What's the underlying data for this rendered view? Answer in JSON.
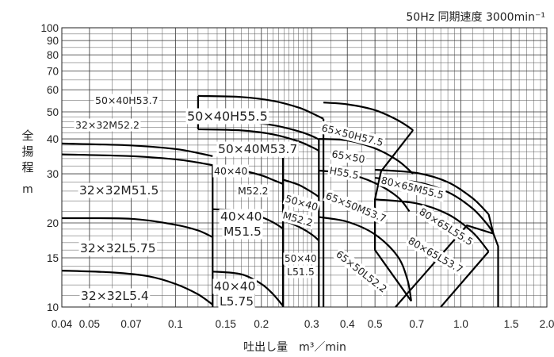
{
  "header": {
    "freq_speed": "50Hz 同期速度 3000min⁻¹"
  },
  "chart_data": {
    "type": "line",
    "x_scale": "log",
    "y_scale": "log",
    "xlabel": "吐出し量　m³／min",
    "ylabel": [
      "全",
      "揚",
      "程",
      "m"
    ],
    "xlim": [
      0.04,
      2.0
    ],
    "ylim": [
      10,
      100
    ],
    "x_ticks": [
      {
        "v": 0.04,
        "t": "0.04"
      },
      {
        "v": 0.05,
        "t": "0.05"
      },
      {
        "v": 0.07,
        "t": "0.07"
      },
      {
        "v": 0.1,
        "t": "0.1"
      },
      {
        "v": 0.15,
        "t": "0.15"
      },
      {
        "v": 0.2,
        "t": "0.2"
      },
      {
        "v": 0.3,
        "t": "0.3"
      },
      {
        "v": 0.4,
        "t": "0.4"
      },
      {
        "v": 0.5,
        "t": "0.5"
      },
      {
        "v": 0.7,
        "t": "0.7"
      },
      {
        "v": 1.0,
        "t": "1.0"
      },
      {
        "v": 1.5,
        "t": "1.5"
      },
      {
        "v": 2.0,
        "t": "2.0"
      }
    ],
    "y_ticks": [
      {
        "v": 10,
        "t": "10"
      },
      {
        "v": 15,
        "t": "15"
      },
      {
        "v": 20,
        "t": "20"
      },
      {
        "v": 30,
        "t": "30"
      },
      {
        "v": 40,
        "t": "40"
      },
      {
        "v": 50,
        "t": "50"
      },
      {
        "v": 60,
        "t": "60"
      },
      {
        "v": 70,
        "t": "70"
      },
      {
        "v": 80,
        "t": "80"
      },
      {
        "v": 90,
        "t": "90"
      },
      {
        "v": 100,
        "t": "100"
      }
    ],
    "grid": true,
    "series": [
      {
        "label": "32×32L5.4",
        "points": [
          [
            0.04,
            13.5
          ],
          [
            0.06,
            13.3
          ],
          [
            0.08,
            12.9
          ],
          [
            0.1,
            12.1
          ],
          [
            0.12,
            11.1
          ],
          [
            0.135,
            10.2
          ]
        ]
      },
      {
        "label": "32×32L5.75",
        "points": [
          [
            0.04,
            20.8
          ],
          [
            0.07,
            20.7
          ],
          [
            0.1,
            19.7
          ],
          [
            0.12,
            18.8
          ],
          [
            0.135,
            17.8
          ]
        ]
      },
      {
        "label": "32×32M51.5",
        "points": [
          [
            0.04,
            35.2
          ],
          [
            0.07,
            34.7
          ],
          [
            0.1,
            33.8
          ],
          [
            0.12,
            32.9
          ],
          [
            0.135,
            32.2
          ]
        ]
      },
      {
        "label": "32×32M52.2",
        "points": [
          [
            0.04,
            38.5
          ],
          [
            0.07,
            37.9
          ],
          [
            0.1,
            36.8
          ],
          [
            0.12,
            35.6
          ],
          [
            0.135,
            34.7
          ]
        ]
      },
      {
        "label": "40×40L5.75",
        "points": [
          [
            0.135,
            13.4
          ],
          [
            0.17,
            13.1
          ],
          [
            0.2,
            12.1
          ],
          [
            0.22,
            11.1
          ],
          [
            0.238,
            10.1
          ]
        ]
      },
      {
        "label": "40×40M51.5",
        "points": [
          [
            0.135,
            22.4
          ],
          [
            0.17,
            22.1
          ],
          [
            0.2,
            21.0
          ],
          [
            0.22,
            20.1
          ],
          [
            0.238,
            19.1
          ]
        ]
      },
      {
        "label": "40×40M52.2",
        "points": [
          [
            0.135,
            31.2
          ],
          [
            0.17,
            30.8
          ],
          [
            0.2,
            29.6
          ],
          [
            0.22,
            28.5
          ],
          [
            0.238,
            27.6
          ]
        ]
      },
      {
        "label": "50×40L51.5",
        "points": [
          [
            0.238,
            20.5
          ],
          [
            0.27,
            19.4
          ],
          [
            0.3,
            18.2
          ],
          [
            0.318,
            17.3
          ]
        ]
      },
      {
        "label": "50×40M52.2",
        "points": [
          [
            0.238,
            28.6
          ],
          [
            0.27,
            27.4
          ],
          [
            0.3,
            25.8
          ],
          [
            0.318,
            24.8
          ]
        ]
      },
      {
        "label": "50×40M53.7",
        "points": [
          [
            0.12,
            43.3
          ],
          [
            0.17,
            42.9
          ],
          [
            0.22,
            41.5
          ],
          [
            0.27,
            39.2
          ],
          [
            0.3,
            37.4
          ],
          [
            0.318,
            36.3
          ]
        ]
      },
      {
        "label": "50×40H53.7",
        "points": [
          [
            0.12,
            46.3
          ],
          [
            0.17,
            46.0
          ],
          [
            0.22,
            44.8
          ],
          [
            0.27,
            42.6
          ],
          [
            0.3,
            41.0
          ],
          [
            0.318,
            39.8
          ]
        ]
      },
      {
        "label": "50×40H55.5",
        "points": [
          [
            0.12,
            57.0
          ],
          [
            0.17,
            56.5
          ],
          [
            0.22,
            54.7
          ],
          [
            0.27,
            51.8
          ],
          [
            0.3,
            49.5
          ],
          [
            0.33,
            47.2
          ]
        ]
      },
      {
        "label": "65×50L52.2",
        "points": [
          [
            0.318,
            21.0
          ],
          [
            0.4,
            20.2
          ],
          [
            0.5,
            18.2
          ],
          [
            0.6,
            15.2
          ],
          [
            0.65,
            12.5
          ],
          [
            0.67,
            10.5
          ]
        ]
      },
      {
        "label": "65×50M53.7",
        "points": [
          [
            0.318,
            30.8
          ],
          [
            0.4,
            30.0
          ],
          [
            0.5,
            27.8
          ],
          [
            0.6,
            24.8
          ],
          [
            0.66,
            22.0
          ]
        ]
      },
      {
        "label": "65×50H55.5",
        "points": [
          [
            0.318,
            40.0
          ],
          [
            0.4,
            39.5
          ],
          [
            0.5,
            37.0
          ],
          [
            0.6,
            33.5
          ],
          [
            0.68,
            30.0
          ]
        ]
      },
      {
        "label": "65×50H57.5",
        "points": [
          [
            0.33,
            54.0
          ],
          [
            0.4,
            53.2
          ],
          [
            0.5,
            50.7
          ],
          [
            0.6,
            46.7
          ],
          [
            0.68,
            43.0
          ]
        ]
      },
      {
        "label": "80×65L53.7",
        "points": [
          [
            0.5,
            24.3
          ],
          [
            0.7,
            23.5
          ],
          [
            0.9,
            21.5
          ],
          [
            1.1,
            18.5
          ],
          [
            1.25,
            15.8
          ]
        ]
      },
      {
        "label": "80×65L55.5",
        "points": [
          [
            0.5,
            29.0
          ],
          [
            0.7,
            28.0
          ],
          [
            0.9,
            25.8
          ],
          [
            1.1,
            22.5
          ],
          [
            1.25,
            19.5
          ],
          [
            1.3,
            18.3
          ]
        ]
      },
      {
        "label": "80×65M55.5",
        "points": [
          [
            0.5,
            31.0
          ],
          [
            0.7,
            30.2
          ],
          [
            0.9,
            28.0
          ],
          [
            1.1,
            24.5
          ],
          [
            1.25,
            21.5
          ]
        ]
      }
    ],
    "limit_lines": [
      [
        [
          0.135,
          10
        ],
        [
          0.135,
          32.2
        ]
      ],
      [
        [
          0.238,
          10
        ],
        [
          0.238,
          34.2
        ]
      ],
      [
        [
          0.318,
          10
        ],
        [
          0.318,
          39.8
        ]
      ],
      [
        [
          0.12,
          43.3
        ],
        [
          0.12,
          57.0
        ]
      ],
      [
        [
          0.33,
          10
        ],
        [
          0.33,
          47.2
        ]
      ],
      [
        [
          0.68,
          43.0
        ],
        [
          0.525,
          30.6
        ],
        [
          0.5,
          24.3
        ],
        [
          0.5,
          16.0
        ],
        [
          0.67,
          10.5
        ]
      ],
      [
        [
          0.59,
          10
        ],
        [
          1.05,
          19.6
        ],
        [
          1.3,
          18.3
        ]
      ],
      [
        [
          0.85,
          10
        ],
        [
          1.25,
          15.8
        ]
      ],
      [
        [
          1.25,
          21.5
        ],
        [
          1.3,
          18.3
        ],
        [
          1.35,
          16.5
        ],
        [
          1.35,
          10
        ]
      ]
    ],
    "annotations": [
      {
        "text": "50Hz 同期速度 3000min⁻¹"
      },
      {
        "text": "50×40H53.7"
      },
      {
        "text": "50×40H55.5"
      },
      {
        "text": "32×32M52.2"
      },
      {
        "text": "65×50H57.5"
      },
      {
        "text": "50×40M53.7"
      },
      {
        "text": "65×50"
      },
      {
        "text": "H55.5"
      },
      {
        "text": "40×40"
      },
      {
        "text": "M52.2"
      },
      {
        "text": "80×65M55.5"
      },
      {
        "text": "32×32M51.5"
      },
      {
        "text": "50×40"
      },
      {
        "text": "M52.2"
      },
      {
        "text": "65×50M53.7"
      },
      {
        "text": "40×40"
      },
      {
        "text": "M51.5"
      },
      {
        "text": "80×65L55.5"
      },
      {
        "text": "32×32L5.75"
      },
      {
        "text": "50×40"
      },
      {
        "text": "L51.5"
      },
      {
        "text": "80×65L53.7"
      },
      {
        "text": "65×50L52.2"
      },
      {
        "text": "40×40"
      },
      {
        "text": "L5.75"
      },
      {
        "text": "32×32L5.4"
      }
    ]
  }
}
